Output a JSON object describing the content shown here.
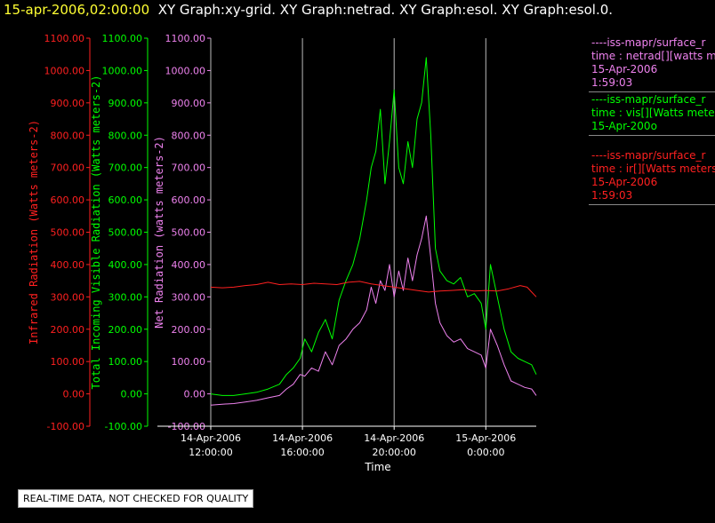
{
  "header": {
    "timestamp": "15-apr-2006,02:00:00",
    "graphs": "XY Graph:xy-grid.  XY Graph:netrad.  XY Graph:esol.  XY Graph:esol.0."
  },
  "legend": [
    {
      "lines": [
        "----iss-mapr/surface_r",
        "time : netrad[][watts m",
        "15-Apr-2006",
        "1:59:03"
      ],
      "color": "#ee82ee"
    },
    {
      "lines": [
        "----iss-mapr/surface_r",
        "time : vis[][Watts meter",
        "15-Apr-200o"
      ],
      "color": "#00ff00"
    },
    {
      "lines": [
        "----iss-mapr/surface_r",
        "time : ir[][Watts meters",
        "15-Apr-2006",
        "1:59:03"
      ],
      "color": "#ff2020"
    }
  ],
  "notice": "REAL-TIME DATA, NOT CHECKED FOR QUALITY",
  "chart_data": {
    "type": "line",
    "x_axis": {
      "label": "Time",
      "ticks": [
        {
          "hours": 12,
          "line1": "14-Apr-2006",
          "line2": "12:00:00"
        },
        {
          "hours": 16,
          "line1": "14-Apr-2006",
          "line2": "16:00:00"
        },
        {
          "hours": 20,
          "line1": "14-Apr-2006",
          "line2": "20:00:00"
        },
        {
          "hours": 24,
          "line1": "15-Apr-2006",
          "line2": "0:00:00"
        }
      ],
      "range_hours": [
        12,
        26.2
      ],
      "grid": true
    },
    "y_axes": [
      {
        "id": "ir",
        "label": "Infrared Radiation (Watts meters-2)",
        "color": "#ff2020",
        "ylim": [
          -100,
          1100
        ]
      },
      {
        "id": "vis",
        "label": "Total Incoming Visible Radiation (Watts meters-2)",
        "color": "#00ff00",
        "ylim": [
          -100,
          1100
        ]
      },
      {
        "id": "net",
        "label": "Net Radiation (watts meters-2)",
        "color": "#ee82ee",
        "ylim": [
          -100,
          1100
        ]
      }
    ],
    "y_ticks": [
      -100,
      0,
      100,
      200,
      300,
      400,
      500,
      600,
      700,
      800,
      900,
      1000,
      1100
    ],
    "series": [
      {
        "name": "netrad",
        "color": "#ee82ee",
        "x": [
          12.0,
          12.5,
          13.0,
          13.5,
          14.0,
          14.5,
          15.0,
          15.3,
          15.6,
          15.9,
          16.1,
          16.4,
          16.7,
          17.0,
          17.3,
          17.6,
          17.9,
          18.2,
          18.5,
          18.8,
          19.0,
          19.2,
          19.4,
          19.6,
          19.8,
          20.0,
          20.2,
          20.4,
          20.6,
          20.8,
          21.0,
          21.2,
          21.4,
          21.6,
          21.8,
          22.0,
          22.3,
          22.6,
          22.9,
          23.2,
          23.5,
          23.8,
          24.0,
          24.2,
          24.5,
          24.8,
          25.1,
          25.4,
          25.7,
          26.0,
          26.2
        ],
        "y": [
          -35,
          -32,
          -30,
          -25,
          -20,
          -12,
          -5,
          15,
          30,
          60,
          55,
          80,
          70,
          130,
          90,
          150,
          170,
          200,
          220,
          260,
          330,
          280,
          350,
          320,
          400,
          300,
          380,
          320,
          420,
          350,
          430,
          480,
          550,
          420,
          280,
          220,
          180,
          160,
          170,
          140,
          130,
          120,
          80,
          200,
          150,
          90,
          40,
          30,
          20,
          15,
          -5
        ]
      },
      {
        "name": "vis",
        "color": "#00ff00",
        "x": [
          12.0,
          12.5,
          13.0,
          13.5,
          14.0,
          14.5,
          15.0,
          15.3,
          15.6,
          15.9,
          16.1,
          16.4,
          16.7,
          17.0,
          17.3,
          17.6,
          17.9,
          18.2,
          18.5,
          18.8,
          19.0,
          19.2,
          19.4,
          19.6,
          19.8,
          20.0,
          20.2,
          20.4,
          20.6,
          20.8,
          21.0,
          21.2,
          21.4,
          21.6,
          21.8,
          22.0,
          22.3,
          22.6,
          22.9,
          23.2,
          23.5,
          23.8,
          24.0,
          24.2,
          24.5,
          24.8,
          25.1,
          25.4,
          25.7,
          26.0,
          26.2
        ],
        "y": [
          0,
          -5,
          -5,
          0,
          5,
          15,
          30,
          60,
          80,
          110,
          170,
          130,
          190,
          230,
          170,
          290,
          350,
          400,
          480,
          600,
          700,
          750,
          880,
          650,
          780,
          940,
          700,
          650,
          780,
          700,
          850,
          900,
          1040,
          800,
          450,
          380,
          350,
          340,
          360,
          300,
          310,
          280,
          200,
          400,
          300,
          200,
          130,
          110,
          100,
          90,
          60
        ]
      },
      {
        "name": "ir",
        "color": "#ff2020",
        "x": [
          12.0,
          12.5,
          13.0,
          13.5,
          14.0,
          14.5,
          15.0,
          15.5,
          16.0,
          16.5,
          17.0,
          17.5,
          18.0,
          18.5,
          19.0,
          19.5,
          20.0,
          20.5,
          21.0,
          21.5,
          22.0,
          22.5,
          23.0,
          23.5,
          24.0,
          24.5,
          25.0,
          25.5,
          25.8,
          26.0,
          26.2
        ],
        "y": [
          330,
          328,
          330,
          335,
          338,
          345,
          338,
          340,
          338,
          342,
          340,
          338,
          345,
          348,
          340,
          335,
          330,
          325,
          320,
          315,
          318,
          320,
          322,
          318,
          320,
          318,
          325,
          335,
          330,
          315,
          300
        ]
      }
    ]
  }
}
